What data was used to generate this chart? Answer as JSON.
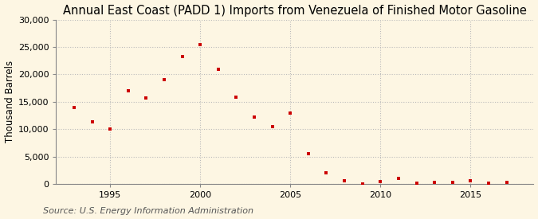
{
  "title": "Annual East Coast (PADD 1) Imports from Venezuela of Finished Motor Gasoline",
  "ylabel": "Thousand Barrels",
  "source": "Source: U.S. Energy Information Administration",
  "years": [
    1993,
    1994,
    1995,
    1996,
    1997,
    1998,
    1999,
    2000,
    2001,
    2002,
    2003,
    2004,
    2005,
    2006,
    2007,
    2008,
    2009,
    2010,
    2011,
    2012,
    2013,
    2014,
    2015,
    2016,
    2017
  ],
  "values": [
    14000,
    11300,
    10000,
    17000,
    15700,
    19000,
    23300,
    25500,
    21000,
    15800,
    12200,
    10500,
    13000,
    5600,
    2000,
    600,
    50,
    400,
    1100,
    200,
    300,
    300,
    600,
    200,
    300
  ],
  "marker_color": "#cc0000",
  "background_color": "#fdf6e3",
  "plot_bg_color": "#fdf6e3",
  "grid_color": "#bbbbbb",
  "ylim": [
    0,
    30000
  ],
  "yticks": [
    0,
    5000,
    10000,
    15000,
    20000,
    25000,
    30000
  ],
  "xlim": [
    1992,
    2018.5
  ],
  "xticks": [
    1995,
    2000,
    2005,
    2010,
    2015
  ],
  "title_fontsize": 10.5,
  "ylabel_fontsize": 8.5,
  "source_fontsize": 8,
  "tick_fontsize": 8
}
